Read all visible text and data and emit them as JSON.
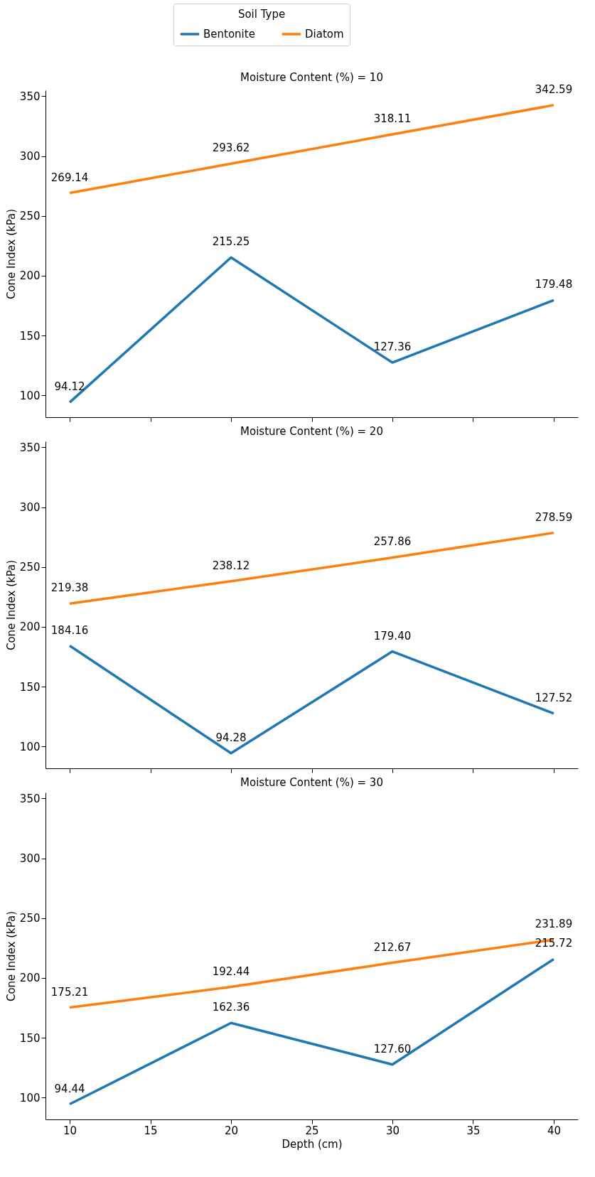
{
  "chart_data": [
    {
      "type": "line",
      "title": "Moisture Content (%) = 10",
      "ylabel": "Cone Index (kPa)",
      "legend_title": "Soil Type",
      "legend": "top",
      "tick_labels": "y",
      "x": [
        10,
        20,
        30,
        40
      ],
      "xlim": [
        8.5,
        41.5
      ],
      "xticks": [
        10,
        15,
        20,
        25,
        30,
        35,
        40
      ],
      "ylim": [
        81.7,
        355
      ],
      "yticks": [
        100,
        150,
        200,
        250,
        300,
        350
      ],
      "series": [
        {
          "name": "Bentonite",
          "color": "#1f77b4",
          "values": [
            94.12,
            215.25,
            127.36,
            179.48
          ],
          "value_labels": [
            "94.12",
            "215.25",
            "127.36",
            "179.48"
          ]
        },
        {
          "name": "Diatom",
          "color": "#ff7f0e",
          "values": [
            269.14,
            293.62,
            318.11,
            342.59
          ],
          "value_labels": [
            "269.14",
            "293.62",
            "318.11",
            "342.59"
          ]
        }
      ]
    },
    {
      "type": "line",
      "title": "Moisture Content (%) = 20",
      "ylabel": "Cone Index (kPa)",
      "tick_labels": "y",
      "x": [
        10,
        20,
        30,
        40
      ],
      "xlim": [
        8.5,
        41.5
      ],
      "xticks": [
        10,
        15,
        20,
        25,
        30,
        35,
        40
      ],
      "ylim": [
        81.7,
        355
      ],
      "yticks": [
        100,
        150,
        200,
        250,
        300,
        350
      ],
      "series": [
        {
          "color": "#1f77b4",
          "values": [
            184.16,
            94.28,
            179.4,
            127.52
          ],
          "value_labels": [
            "184.16",
            "94.28",
            "179.40",
            "127.52"
          ]
        },
        {
          "color": "#ff7f0e",
          "values": [
            219.38,
            238.12,
            257.86,
            278.59
          ],
          "value_labels": [
            "219.38",
            "238.12",
            "257.86",
            "278.59"
          ]
        }
      ]
    },
    {
      "type": "line",
      "title": "Moisture Content (%) = 30",
      "xlabel": "Depth (cm)",
      "ylabel": "Cone Index (kPa)",
      "x": [
        10,
        20,
        30,
        40
      ],
      "xlim": [
        8.5,
        41.5
      ],
      "xticks": [
        10,
        15,
        20,
        25,
        30,
        35,
        40
      ],
      "ylim": [
        81.7,
        355
      ],
      "yticks": [
        100,
        150,
        200,
        250,
        300,
        350
      ],
      "series": [
        {
          "color": "#1f77b4",
          "values": [
            94.44,
            162.36,
            127.6,
            215.72
          ],
          "value_labels": [
            "94.44",
            "162.36",
            "127.60",
            "215.72"
          ]
        },
        {
          "color": "#ff7f0e",
          "values": [
            175.21,
            192.44,
            212.67,
            231.89
          ],
          "value_labels": [
            "175.21",
            "192.44",
            "212.67",
            "231.89"
          ]
        }
      ]
    }
  ]
}
